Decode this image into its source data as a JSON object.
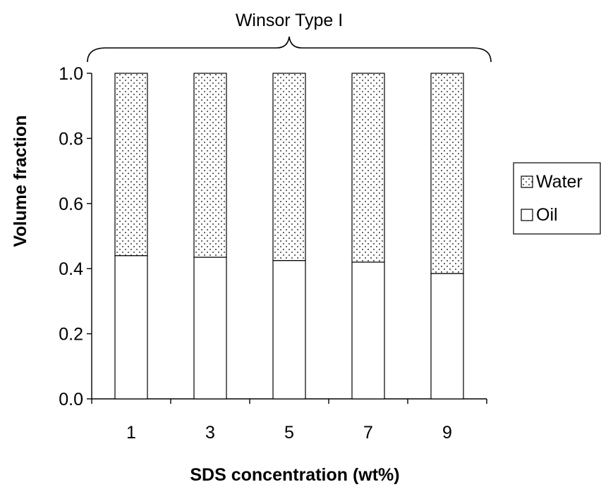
{
  "chart_data": {
    "type": "bar",
    "stacked": true,
    "categories": [
      "1",
      "3",
      "5",
      "7",
      "9"
    ],
    "series": [
      {
        "name": "Oil",
        "values": [
          0.44,
          0.435,
          0.425,
          0.42,
          0.385
        ],
        "pattern": "blank"
      },
      {
        "name": "Water",
        "values": [
          0.56,
          0.565,
          0.575,
          0.58,
          0.615
        ],
        "pattern": "dotted"
      }
    ],
    "annotation": "Winsor Type  I",
    "xlabel": "SDS concentration (wt%)",
    "ylabel": "Volume fraction",
    "ylim": [
      0,
      1.0
    ],
    "yticks": [
      "0.0",
      "0.2",
      "0.4",
      "0.6",
      "0.8",
      "1.0"
    ],
    "grid": false,
    "legend_position": "right",
    "legend_order": [
      "Water",
      "Oil"
    ]
  }
}
